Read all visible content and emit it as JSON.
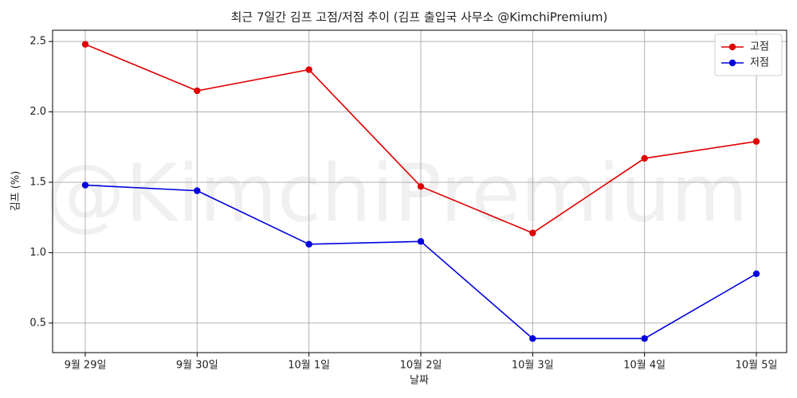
{
  "chart_data": {
    "type": "line",
    "title": "최근 7일간 김프 고점/저점 추이 (김프 출입국 사무소 @KimchiPremium)",
    "watermark": "@KimchiPremium",
    "x_label": "날짜",
    "y_label": "김프 (%)",
    "categories": [
      "9월 29일",
      "9월 30일",
      "10월 1일",
      "10월 2일",
      "10월 3일",
      "10월 4일",
      "10월 5일"
    ],
    "series": [
      {
        "name": "고점",
        "color": "#e00000",
        "values": [
          2.48,
          2.15,
          2.3,
          1.47,
          1.14,
          1.67,
          1.79
        ]
      },
      {
        "name": "저점",
        "color": "#0000e0",
        "values": [
          1.48,
          1.44,
          1.06,
          1.08,
          0.39,
          0.39,
          0.85
        ]
      }
    ],
    "ylim": [
      0.29,
      2.58
    ],
    "yticks": [
      0.5,
      {
        "value": 1,
        "label": "1.0"
      },
      1.5,
      {
        "value": 2,
        "label": "2.0"
      },
      2.5
    ],
    "grid": true,
    "legend": "upper right"
  }
}
